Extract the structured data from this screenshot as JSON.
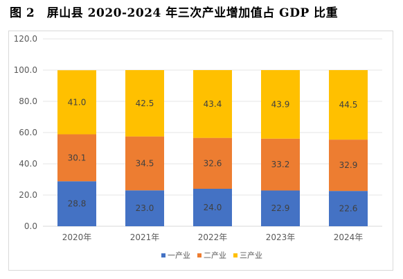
{
  "title": "图 2　屏山县 2020-2024 年三次产业增加值占 GDP 比重",
  "chart_data": {
    "type": "bar",
    "stacked": true,
    "categories": [
      "2020年",
      "2021年",
      "2022年",
      "2023年",
      "2024年"
    ],
    "series": [
      {
        "name": "一产业",
        "color": "#4472c4",
        "values": [
          28.8,
          23.0,
          24.0,
          22.9,
          22.6
        ]
      },
      {
        "name": "二产业",
        "color": "#ed7d31",
        "values": [
          30.1,
          34.5,
          32.6,
          33.2,
          32.9
        ]
      },
      {
        "name": "三产业",
        "color": "#ffc000",
        "values": [
          41.0,
          42.5,
          43.4,
          43.9,
          44.5
        ]
      }
    ],
    "ylim": [
      0,
      120
    ],
    "yticks": [
      "0.0",
      "20.0",
      "40.0",
      "60.0",
      "80.0",
      "100.0",
      "120.0"
    ],
    "grid": true,
    "legend": "bottom"
  }
}
